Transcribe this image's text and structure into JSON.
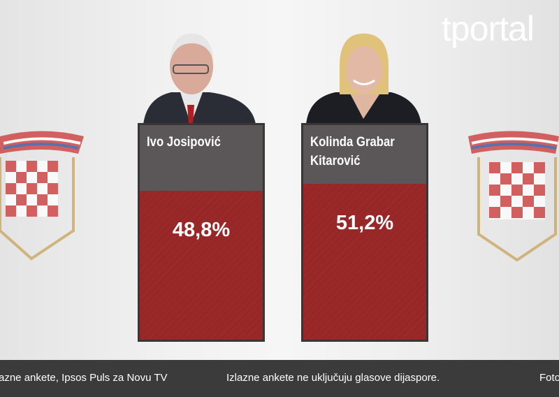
{
  "brand": "tportal",
  "chart_data": {
    "type": "bar",
    "categories": [
      "Ivo Josipović",
      "Kolinda Grabar Kitarović"
    ],
    "values": [
      48.8,
      51.2
    ],
    "value_labels": [
      "48,8%",
      "51,2%"
    ],
    "color": "#9b2828"
  },
  "footer": {
    "source": "azne ankete, Ipsos Puls za Novu TV",
    "note": "Izlazne ankete ne uključuju glasove dijaspore.",
    "credit": "Foto"
  }
}
